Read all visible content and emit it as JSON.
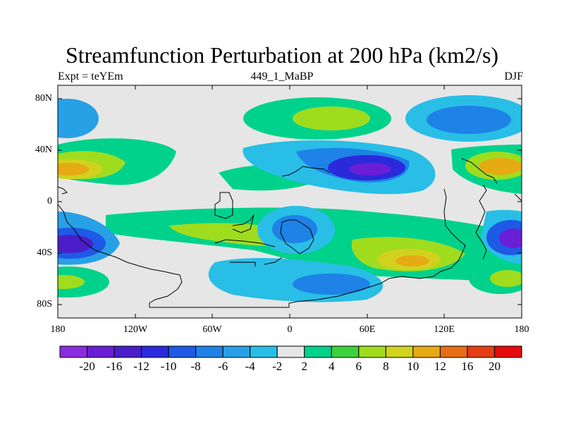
{
  "header": {
    "title": "Streamfunction Perturbation at 200 hPa (km2/s)",
    "left": "Expt = teYEm",
    "center": "449_1_MaBP",
    "right": "DJF"
  },
  "axes": {
    "lat_labels": [
      "80N",
      "40N",
      "0",
      "40S",
      "80S"
    ],
    "lon_labels": [
      "180",
      "120W",
      "60W",
      "0",
      "60E",
      "120E",
      "180"
    ]
  },
  "colorbar": {
    "labels": [
      "-20",
      "-16",
      "-12",
      "-10",
      "-8",
      "-6",
      "-4",
      "-2",
      "2",
      "4",
      "6",
      "8",
      "10",
      "12",
      "16",
      "20"
    ],
    "colors": [
      "#8b2be0",
      "#6a1ed6",
      "#4a1ec8",
      "#2a2adc",
      "#1e5ae6",
      "#1e82e6",
      "#28a0e6",
      "#28bee6",
      "#e6e6e6",
      "#00d28c",
      "#3cd23c",
      "#a0dc1e",
      "#d2d21e",
      "#e6aa14",
      "#e66e14",
      "#e63c14",
      "#e60a0a"
    ]
  },
  "map": {
    "background_color": "#e6e6e6",
    "frame_color": "#000000",
    "coast_color": "#000000"
  }
}
